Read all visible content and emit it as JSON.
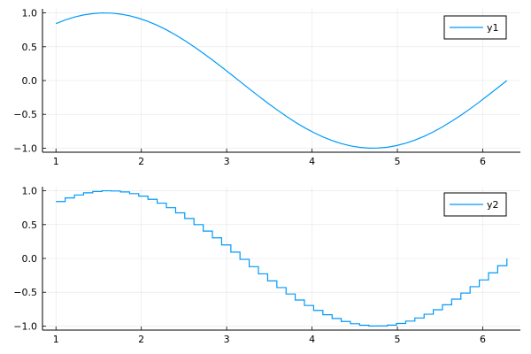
{
  "chart_data": [
    {
      "type": "line",
      "title": "",
      "xlabel": "",
      "ylabel": "",
      "xlim": [
        0.842,
        6.441
      ],
      "ylim": [
        -1.06,
        1.06
      ],
      "xticks": [
        "1",
        "2",
        "3",
        "4",
        "5",
        "6"
      ],
      "yticks": [
        "-1.0",
        "-0.5",
        "0.0",
        "0.5",
        "1.0"
      ],
      "grid": true,
      "legend_position": "top-right",
      "color": "#009af9",
      "series": [
        {
          "name": "y1",
          "x": [
            1.0,
            1.108,
            1.216,
            1.323,
            1.431,
            1.539,
            1.647,
            1.755,
            1.863,
            1.97,
            2.078,
            2.186,
            2.294,
            2.402,
            2.509,
            2.617,
            2.725,
            2.833,
            2.941,
            3.049,
            3.156,
            3.264,
            3.372,
            3.48,
            3.588,
            3.696,
            3.803,
            3.911,
            4.019,
            4.127,
            4.235,
            4.342,
            4.45,
            4.558,
            4.666,
            4.774,
            4.882,
            4.989,
            5.097,
            5.205,
            5.313,
            5.421,
            5.528,
            5.636,
            5.744,
            5.852,
            5.96,
            6.068,
            6.175,
            6.283
          ],
          "y": [
            0.841,
            0.895,
            0.938,
            0.97,
            0.99,
            1.0,
            0.997,
            0.983,
            0.958,
            0.921,
            0.874,
            0.817,
            0.75,
            0.674,
            0.591,
            0.5,
            0.404,
            0.304,
            0.2,
            0.093,
            -0.014,
            -0.122,
            -0.228,
            -0.332,
            -0.431,
            -0.526,
            -0.615,
            -0.696,
            -0.769,
            -0.833,
            -0.888,
            -0.932,
            -0.966,
            -0.988,
            -0.999,
            -0.998,
            -0.986,
            -0.962,
            -0.927,
            -0.881,
            -0.825,
            -0.759,
            -0.685,
            -0.602,
            -0.513,
            -0.418,
            -0.318,
            -0.213,
            -0.108,
            0.0
          ]
        }
      ]
    },
    {
      "type": "line",
      "step": "post",
      "title": "",
      "xlabel": "",
      "ylabel": "",
      "xlim": [
        0.842,
        6.441
      ],
      "ylim": [
        -1.06,
        1.06
      ],
      "xticks": [
        "1",
        "2",
        "3",
        "4",
        "5",
        "6"
      ],
      "yticks": [
        "-1.0",
        "-0.5",
        "0.0",
        "0.5",
        "1.0"
      ],
      "grid": true,
      "legend_position": "top-right",
      "color": "#009af9",
      "series": [
        {
          "name": "y2",
          "x": [
            1.0,
            1.108,
            1.216,
            1.323,
            1.431,
            1.539,
            1.647,
            1.755,
            1.863,
            1.97,
            2.078,
            2.186,
            2.294,
            2.402,
            2.509,
            2.617,
            2.725,
            2.833,
            2.941,
            3.049,
            3.156,
            3.264,
            3.372,
            3.48,
            3.588,
            3.696,
            3.803,
            3.911,
            4.019,
            4.127,
            4.235,
            4.342,
            4.45,
            4.558,
            4.666,
            4.774,
            4.882,
            4.989,
            5.097,
            5.205,
            5.313,
            5.421,
            5.528,
            5.636,
            5.744,
            5.852,
            5.96,
            6.068,
            6.175,
            6.283
          ],
          "y": [
            0.841,
            0.895,
            0.938,
            0.97,
            0.99,
            1.0,
            0.997,
            0.983,
            0.958,
            0.921,
            0.874,
            0.817,
            0.75,
            0.674,
            0.591,
            0.5,
            0.404,
            0.304,
            0.2,
            0.093,
            -0.014,
            -0.122,
            -0.228,
            -0.332,
            -0.431,
            -0.526,
            -0.615,
            -0.696,
            -0.769,
            -0.833,
            -0.888,
            -0.932,
            -0.966,
            -0.988,
            -0.999,
            -0.998,
            -0.986,
            -0.962,
            -0.927,
            -0.881,
            -0.825,
            -0.759,
            -0.685,
            -0.602,
            -0.513,
            -0.418,
            -0.318,
            -0.213,
            -0.108,
            0.0
          ]
        }
      ]
    }
  ]
}
